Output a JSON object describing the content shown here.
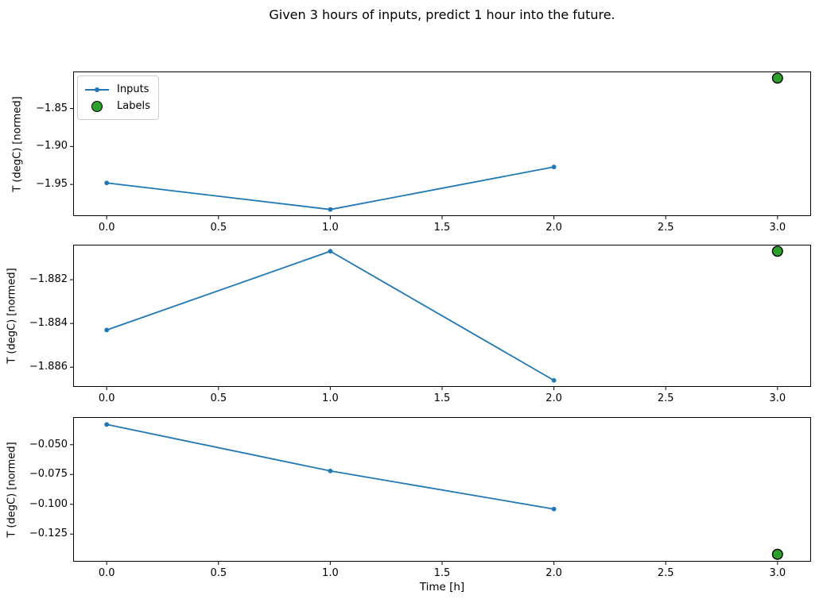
{
  "title": "Given 3 hours of inputs, predict 1 hour into the future.",
  "colors": {
    "inputs_line": "#1f77b4",
    "labels_fill": "#2ca02c",
    "labels_edge": "#000000",
    "axis": "#000000",
    "legend_border": "#cccccc",
    "background": "#ffffff"
  },
  "legend": {
    "items": [
      {
        "label": "Inputs"
      },
      {
        "label": "Labels"
      }
    ]
  },
  "chart_data": [
    {
      "type": "line",
      "ylabel": "T (degC) [normed]",
      "x": [
        0,
        1,
        2
      ],
      "series": [
        {
          "name": "Inputs",
          "values": [
            -1.948,
            -1.983,
            -1.927
          ]
        }
      ],
      "labels_point": {
        "name": "Labels",
        "x": 3,
        "value": -1.81
      },
      "xlim": [
        -0.15,
        3.15
      ],
      "ylim": [
        -1.9917,
        -1.8013
      ],
      "x_tick_values": [
        0,
        0.5,
        1,
        1.5,
        2,
        2.5,
        3
      ],
      "x_tick_labels": [
        "0.0",
        "0.5",
        "1.0",
        "1.5",
        "2.0",
        "2.5",
        "3.0"
      ],
      "y_tick_values": [
        -1.85,
        -1.9,
        -1.95
      ],
      "y_tick_labels": [
        "−1.85",
        "−1.90",
        "−1.95"
      ],
      "legend_visible": true,
      "grid": false
    },
    {
      "type": "line",
      "ylabel": "T (degC) [normed]",
      "x": [
        0,
        1,
        2
      ],
      "series": [
        {
          "name": "Inputs",
          "values": [
            -1.8843,
            -1.8807,
            -1.8866
          ]
        }
      ],
      "labels_point": {
        "name": "Labels",
        "x": 3,
        "value": -1.8807
      },
      "xlim": [
        -0.15,
        3.15
      ],
      "ylim": [
        -1.8869,
        -1.8804
      ],
      "x_tick_values": [
        0,
        0.5,
        1,
        1.5,
        2,
        2.5,
        3
      ],
      "x_tick_labels": [
        "0.0",
        "0.5",
        "1.0",
        "1.5",
        "2.0",
        "2.5",
        "3.0"
      ],
      "y_tick_values": [
        -1.882,
        -1.884,
        -1.886
      ],
      "y_tick_labels": [
        "−1.882",
        "−1.884",
        "−1.886"
      ],
      "legend_visible": false,
      "grid": false
    },
    {
      "type": "line",
      "ylabel": "T (degC) [normed]",
      "xlabel": "Time [h]",
      "x": [
        0,
        1,
        2
      ],
      "series": [
        {
          "name": "Inputs",
          "values": [
            -0.033,
            -0.072,
            -0.104
          ]
        }
      ],
      "labels_point": {
        "name": "Labels",
        "x": 3,
        "value": -0.142
      },
      "xlim": [
        -0.15,
        3.15
      ],
      "ylim": [
        -0.1482,
        -0.0268
      ],
      "x_tick_values": [
        0,
        0.5,
        1,
        1.5,
        2,
        2.5,
        3
      ],
      "x_tick_labels": [
        "0.0",
        "0.5",
        "1.0",
        "1.5",
        "2.0",
        "2.5",
        "3.0"
      ],
      "y_tick_values": [
        -0.05,
        -0.075,
        -0.1,
        -0.125
      ],
      "y_tick_labels": [
        "−0.050",
        "−0.075",
        "−0.100",
        "−0.125"
      ],
      "legend_visible": false,
      "grid": false
    }
  ]
}
